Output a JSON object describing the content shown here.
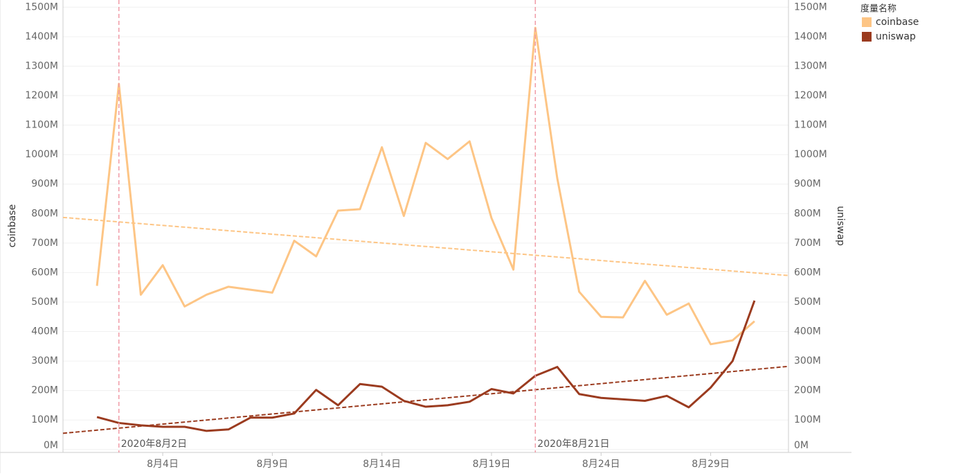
{
  "chart_data": {
    "type": "line",
    "x": [
      1,
      2,
      3,
      4,
      5,
      6,
      7,
      8,
      9,
      10,
      11,
      12,
      13,
      14,
      15,
      16,
      17,
      18,
      19,
      20,
      21,
      22,
      23,
      24,
      25,
      26,
      27,
      28,
      29,
      30,
      31
    ],
    "xlim": [
      -0.55,
      32.55
    ],
    "xticks": [
      {
        "value": 4,
        "label": "8月4日"
      },
      {
        "value": 9,
        "label": "8月9日"
      },
      {
        "value": 14,
        "label": "8月14日"
      },
      {
        "value": 19,
        "label": "8月19日"
      },
      {
        "value": 24,
        "label": "8月24日"
      },
      {
        "value": 29,
        "label": "8月29日"
      }
    ],
    "ylabel": "coinbase",
    "y2label": "uniswap",
    "ylim": [
      -10,
      1515
    ],
    "yticks": [
      {
        "value": 0,
        "label": "0M"
      },
      {
        "value": 100,
        "label": "100M"
      },
      {
        "value": 200,
        "label": "200M"
      },
      {
        "value": 300,
        "label": "300M"
      },
      {
        "value": 400,
        "label": "400M"
      },
      {
        "value": 500,
        "label": "500M"
      },
      {
        "value": 600,
        "label": "600M"
      },
      {
        "value": 700,
        "label": "700M"
      },
      {
        "value": 800,
        "label": "800M"
      },
      {
        "value": 900,
        "label": "900M"
      },
      {
        "value": 1000,
        "label": "1000M"
      },
      {
        "value": 1100,
        "label": "1100M"
      },
      {
        "value": 1200,
        "label": "1200M"
      },
      {
        "value": 1300,
        "label": "1300M"
      },
      {
        "value": 1400,
        "label": "1400M"
      },
      {
        "value": 1500,
        "label": "1500M"
      }
    ],
    "y2lim": [
      -10,
      1515
    ],
    "y2ticks": [
      {
        "value": 0,
        "label": "0M"
      },
      {
        "value": 100,
        "label": "100M"
      },
      {
        "value": 200,
        "label": "200M"
      },
      {
        "value": 300,
        "label": "300M"
      },
      {
        "value": 400,
        "label": "400M"
      },
      {
        "value": 500,
        "label": "500M"
      },
      {
        "value": 600,
        "label": "600M"
      },
      {
        "value": 700,
        "label": "700M"
      },
      {
        "value": 800,
        "label": "800M"
      },
      {
        "value": 900,
        "label": "900M"
      },
      {
        "value": 1000,
        "label": "1000M"
      },
      {
        "value": 1100,
        "label": "1100M"
      },
      {
        "value": 1200,
        "label": "1200M"
      },
      {
        "value": 1300,
        "label": "1300M"
      },
      {
        "value": 1400,
        "label": "1400M"
      },
      {
        "value": 1500,
        "label": "1500M"
      }
    ],
    "grid": true,
    "legend_title": "度量名称",
    "series": [
      {
        "name": "coinbase",
        "color": "#fdc585",
        "values": [
          555,
          1240,
          525,
          625,
          485,
          525,
          552,
          542,
          532,
          708,
          655,
          810,
          815,
          1025,
          792,
          1040,
          985,
          1045,
          785,
          610,
          1430,
          920,
          535,
          450,
          448,
          572,
          457,
          495,
          357,
          370,
          435
        ],
        "trend": [
          787,
          590
        ]
      },
      {
        "name": "uniswap",
        "color": "#9b3b1f",
        "axis": "y2",
        "values": [
          110,
          90,
          82,
          77,
          77,
          63,
          68,
          108,
          108,
          122,
          202,
          150,
          222,
          213,
          165,
          145,
          150,
          162,
          205,
          190,
          250,
          280,
          188,
          175,
          170,
          165,
          182,
          143,
          210,
          300,
          505
        ],
        "trend": [
          55,
          282
        ]
      }
    ],
    "reference_lines": [
      {
        "value": 2,
        "label": "2020年8月2日"
      },
      {
        "value": 21,
        "label": "2020年8月21日"
      }
    ]
  }
}
